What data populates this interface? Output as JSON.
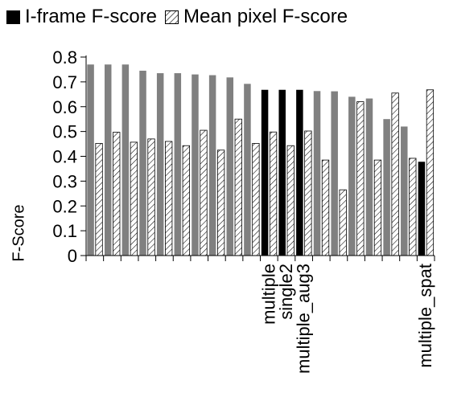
{
  "chart_data": {
    "type": "bar",
    "ylabel": "F-Score",
    "ylim": [
      0,
      0.8
    ],
    "yticks": [
      "0",
      "0.1",
      "0.2",
      "0.3",
      "0.4",
      "0.5",
      "0.6",
      "0.7",
      "0.8"
    ],
    "grid": false,
    "legend_position": "top",
    "categories": [
      "",
      "",
      "",
      "",
      "",
      "",
      "",
      "",
      "",
      "",
      "multiple",
      "single2",
      "multiple_aug3",
      "",
      "",
      "",
      "",
      "",
      "",
      "multiple_spat"
    ],
    "series": [
      {
        "name": "I-frame F-score",
        "values": [
          0.77,
          0.77,
          0.77,
          0.745,
          0.735,
          0.735,
          0.73,
          0.727,
          0.718,
          0.692,
          0.668,
          0.668,
          0.668,
          0.663,
          0.662,
          0.64,
          0.633,
          0.55,
          0.52,
          0.378
        ],
        "highlight": [
          false,
          false,
          false,
          false,
          false,
          false,
          false,
          false,
          false,
          false,
          true,
          true,
          true,
          false,
          false,
          false,
          false,
          false,
          false,
          true
        ]
      },
      {
        "name": "Mean pixel F-score",
        "values": [
          0.452,
          0.497,
          0.457,
          0.47,
          0.46,
          0.443,
          0.505,
          0.425,
          0.55,
          0.452,
          0.498,
          0.443,
          0.502,
          0.385,
          0.265,
          0.62,
          0.385,
          0.655,
          0.392,
          0.668
        ]
      }
    ],
    "colors": {
      "highlight": "#000000",
      "default": "#808080",
      "axis": "#000000"
    }
  }
}
